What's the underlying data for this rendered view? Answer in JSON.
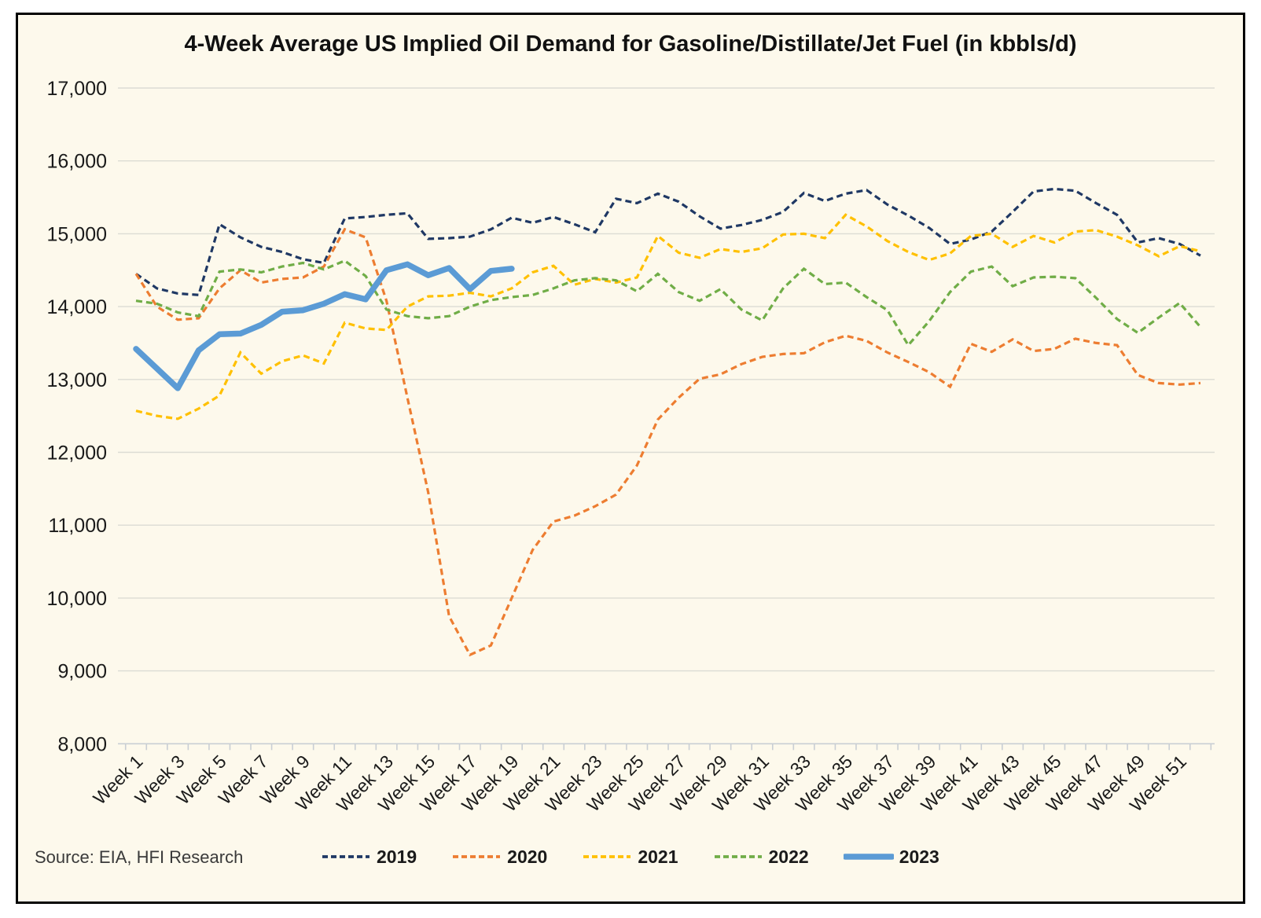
{
  "source": {
    "text": "Source: EIA, HFI Research"
  },
  "colors": {
    "background": "#FDF9EC",
    "page": "#FFFFFF",
    "border": "#000000",
    "gridline": "#DCDCD4",
    "axis": "#C9CED4",
    "text": "#1A1A1A",
    "source_text": "#3A3A3A"
  },
  "chart_data": {
    "type": "line",
    "title": "4-Week Average US Implied Oil Demand for Gasoline/Distillate/Jet Fuel (in kbbls/d)",
    "xlabel": "",
    "ylabel": "",
    "ylim": [
      8000,
      17000
    ],
    "y_tick_step": 1000,
    "grid": true,
    "legend_position": "bottom",
    "weeks": 52,
    "x_tick_labels": [
      "Week 1",
      "Week 3",
      "Week 5",
      "Week 7",
      "Week 9",
      "Week 11",
      "Week 13",
      "Week 15",
      "Week 17",
      "Week 19",
      "Week 21",
      "Week 23",
      "Week 25",
      "Week 27",
      "Week 29",
      "Week 31",
      "Week 33",
      "Week 35",
      "Week 37",
      "Week 39",
      "Week 41",
      "Week 43",
      "Week 45",
      "Week 47",
      "Week 49",
      "Week 51"
    ],
    "y_tick_labels": [
      "17,000",
      "16,000",
      "15,000",
      "14,000",
      "13,000",
      "12,000",
      "11,000",
      "10,000",
      "9,000",
      "8,000"
    ],
    "series": [
      {
        "name": "2019",
        "color": "#1F3864",
        "style": "dashed",
        "width": 3.2,
        "values": [
          14450,
          14250,
          14180,
          14160,
          15130,
          14950,
          14820,
          14750,
          14650,
          14600,
          15210,
          15230,
          15260,
          15280,
          14930,
          14940,
          14960,
          15060,
          15220,
          15150,
          15230,
          15130,
          15020,
          15480,
          15420,
          15550,
          15440,
          15240,
          15070,
          15120,
          15190,
          15300,
          15560,
          15450,
          15550,
          15600,
          15400,
          15250,
          15080,
          14860,
          14920,
          15030,
          15300,
          15580,
          15615,
          15590,
          15420,
          15260,
          14880,
          14940,
          14860,
          14700
        ]
      },
      {
        "name": "2020",
        "color": "#ED7D31",
        "style": "dashed",
        "width": 3.2,
        "values": [
          14450,
          14000,
          13820,
          13840,
          14250,
          14500,
          14330,
          14380,
          14400,
          14550,
          15060,
          14950,
          14080,
          12750,
          11450,
          9750,
          9220,
          9350,
          10000,
          10660,
          11050,
          11130,
          11260,
          11420,
          11820,
          12450,
          12750,
          13010,
          13070,
          13210,
          13310,
          13350,
          13360,
          13510,
          13600,
          13530,
          13370,
          13240,
          13100,
          12900,
          13490,
          13380,
          13550,
          13390,
          13420,
          13560,
          13500,
          13470,
          13060,
          12950,
          12930,
          12950
        ]
      },
      {
        "name": "2021",
        "color": "#FFC000",
        "style": "dashed",
        "width": 3.2,
        "values": [
          12570,
          12500,
          12460,
          12600,
          12780,
          13370,
          13080,
          13250,
          13330,
          13220,
          13780,
          13700,
          13680,
          14000,
          14140,
          14150,
          14190,
          14140,
          14250,
          14470,
          14560,
          14300,
          14380,
          14330,
          14400,
          14970,
          14740,
          14670,
          14790,
          14750,
          14800,
          14990,
          15000,
          14940,
          15260,
          15100,
          14900,
          14750,
          14640,
          14730,
          14970,
          15000,
          14820,
          14970,
          14880,
          15030,
          15050,
          14960,
          14840,
          14690,
          14830,
          14760
        ]
      },
      {
        "name": "2022",
        "color": "#70AD47",
        "style": "dashed",
        "width": 3.2,
        "values": [
          14080,
          14040,
          13920,
          13870,
          14480,
          14510,
          14470,
          14550,
          14600,
          14510,
          14630,
          14420,
          13960,
          13870,
          13840,
          13870,
          14000,
          14090,
          14130,
          14160,
          14250,
          14360,
          14390,
          14360,
          14210,
          14450,
          14200,
          14080,
          14240,
          13960,
          13810,
          14250,
          14520,
          14310,
          14330,
          14130,
          13950,
          13470,
          13800,
          14200,
          14480,
          14550,
          14280,
          14400,
          14410,
          14390,
          14120,
          13830,
          13640,
          13850,
          14050,
          13720
        ]
      },
      {
        "name": "2023",
        "color": "#5B9BD5",
        "style": "solid",
        "width": 7.5,
        "values": [
          13420,
          13150,
          12880,
          13400,
          13620,
          13630,
          13750,
          13930,
          13950,
          14040,
          14170,
          14100,
          14500,
          14580,
          14430,
          14530,
          14240,
          14490,
          14520
        ]
      }
    ]
  }
}
